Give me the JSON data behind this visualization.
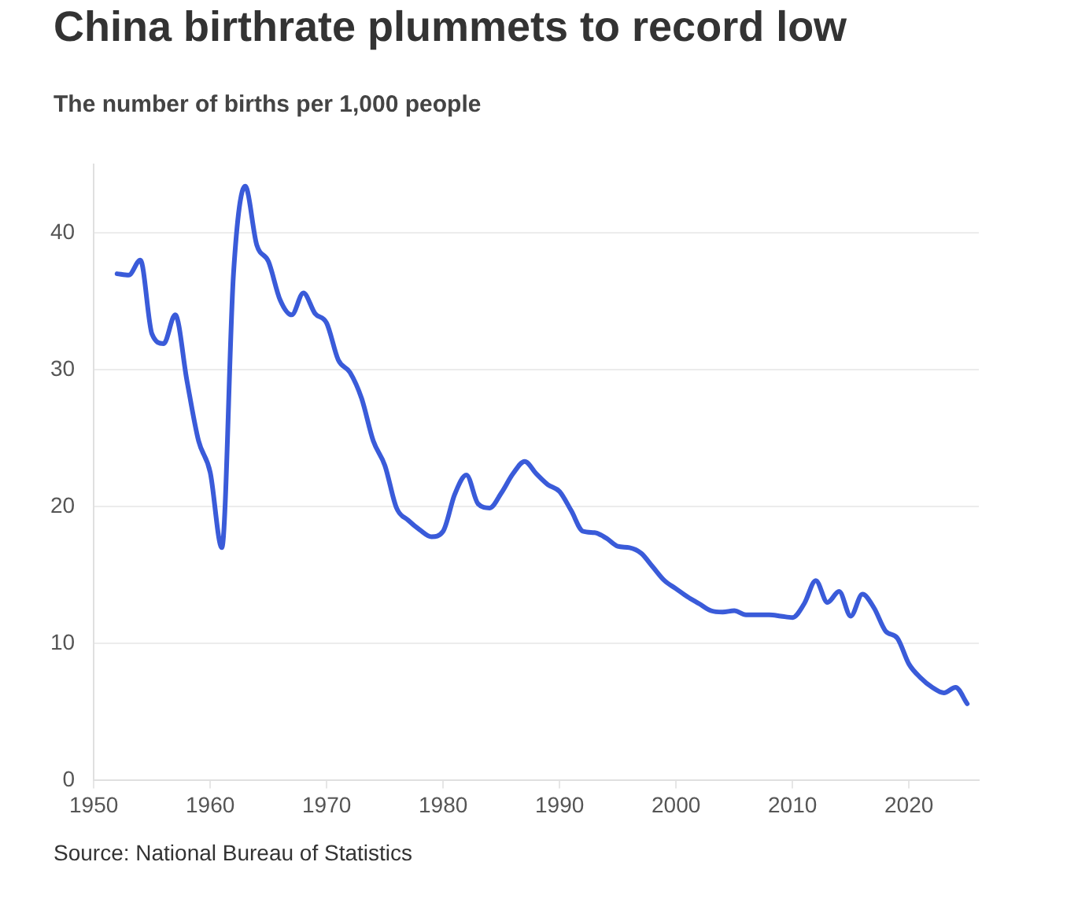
{
  "chart_data": {
    "type": "line",
    "title": "China birthrate plummets to record low",
    "subtitle": "The number of births per 1,000 people",
    "x": [
      1952,
      1953,
      1954,
      1955,
      1956,
      1957,
      1958,
      1959,
      1960,
      1961,
      1962,
      1963,
      1964,
      1965,
      1966,
      1967,
      1968,
      1969,
      1970,
      1971,
      1972,
      1973,
      1974,
      1975,
      1976,
      1977,
      1978,
      1979,
      1980,
      1981,
      1982,
      1983,
      1984,
      1985,
      1986,
      1987,
      1988,
      1989,
      1990,
      1991,
      1992,
      1993,
      1994,
      1995,
      1996,
      1997,
      1998,
      1999,
      2000,
      2001,
      2002,
      2003,
      2004,
      2005,
      2006,
      2007,
      2008,
      2009,
      2010,
      2011,
      2012,
      2013,
      2014,
      2015,
      2016,
      2017,
      2018,
      2019,
      2020,
      2021,
      2022,
      2023,
      2024,
      2025
    ],
    "series": [
      {
        "color": "#3a5bd9",
        "values": [
          37.0,
          36.9,
          38.0,
          32.6,
          31.9,
          34.0,
          29.2,
          24.8,
          22.5,
          17.0,
          37.0,
          43.4,
          39.1,
          37.9,
          35.1,
          34.0,
          35.6,
          34.1,
          33.4,
          30.7,
          29.8,
          27.9,
          24.8,
          23.0,
          19.9,
          19.0,
          18.3,
          17.8,
          18.2,
          20.9,
          22.3,
          20.2,
          19.9,
          21.0,
          22.4,
          23.3,
          22.4,
          21.6,
          21.1,
          19.7,
          18.2,
          18.1,
          17.7,
          17.1,
          17.0,
          16.6,
          15.6,
          14.6,
          14.0,
          13.4,
          12.9,
          12.4,
          12.3,
          12.4,
          12.1,
          12.1,
          12.1,
          12.0,
          11.9,
          12.9,
          14.6,
          13.0,
          13.8,
          12.0,
          13.6,
          12.6,
          10.9,
          10.4,
          8.5,
          7.5,
          6.8,
          6.4,
          6.8,
          5.6
        ]
      }
    ],
    "xlim": [
      1950,
      2026
    ],
    "xticks": [
      1950,
      1960,
      1970,
      1980,
      1990,
      2000,
      2010,
      2020
    ],
    "ylim": [
      0,
      45
    ],
    "yticks": [
      0,
      10,
      20,
      30,
      40
    ],
    "grid": "y",
    "legend": false,
    "marker": "none",
    "line_style": "solid",
    "annotations": [
      "Source: National Bureau of Statistics"
    ]
  }
}
